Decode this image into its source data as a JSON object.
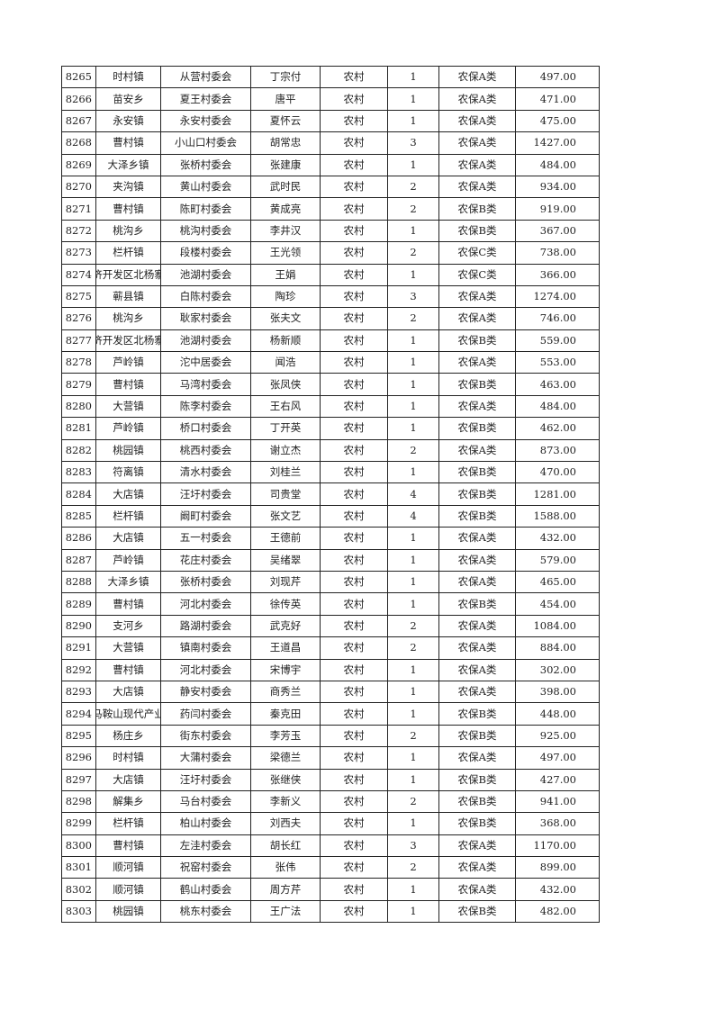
{
  "table": {
    "rows": [
      [
        "8265",
        "时村镇",
        "从营村委会",
        "丁宗付",
        "农村",
        "1",
        "农保A类",
        "497.00"
      ],
      [
        "8266",
        "苗安乡",
        "夏王村委会",
        "唐平",
        "农村",
        "1",
        "农保A类",
        "471.00"
      ],
      [
        "8267",
        "永安镇",
        "永安村委会",
        "夏怀云",
        "农村",
        "1",
        "农保A类",
        "475.00"
      ],
      [
        "8268",
        "曹村镇",
        "小山口村委会",
        "胡常忠",
        "农村",
        "3",
        "农保A类",
        "1427.00"
      ],
      [
        "8269",
        "大泽乡镇",
        "张桥村委会",
        "张建康",
        "农村",
        "1",
        "农保A类",
        "484.00"
      ],
      [
        "8270",
        "夹沟镇",
        "黄山村委会",
        "武时民",
        "农村",
        "2",
        "农保A类",
        "934.00"
      ],
      [
        "8271",
        "曹村镇",
        "陈町村委会",
        "黄成亮",
        "农村",
        "2",
        "农保B类",
        "919.00"
      ],
      [
        "8272",
        "桃沟乡",
        "桃沟村委会",
        "李井汉",
        "农村",
        "1",
        "农保B类",
        "367.00"
      ],
      [
        "8273",
        "栏杆镇",
        "段楼村委会",
        "王光领",
        "农村",
        "2",
        "农保C类",
        "738.00"
      ],
      [
        "8274",
        "济开发区北杨寨",
        "池湖村委会",
        "王娟",
        "农村",
        "1",
        "农保C类",
        "366.00"
      ],
      [
        "8275",
        "蕲县镇",
        "白陈村委会",
        "陶珍",
        "农村",
        "3",
        "农保A类",
        "1274.00"
      ],
      [
        "8276",
        "桃沟乡",
        "耿家村委会",
        "张夫文",
        "农村",
        "2",
        "农保A类",
        "746.00"
      ],
      [
        "8277",
        "济开发区北杨寨",
        "池湖村委会",
        "杨新顺",
        "农村",
        "1",
        "农保B类",
        "559.00"
      ],
      [
        "8278",
        "芦岭镇",
        "沱中居委会",
        "闻浩",
        "农村",
        "1",
        "农保A类",
        "553.00"
      ],
      [
        "8279",
        "曹村镇",
        "马湾村委会",
        "张凤侠",
        "农村",
        "1",
        "农保B类",
        "463.00"
      ],
      [
        "8280",
        "大营镇",
        "陈李村委会",
        "王右风",
        "农村",
        "1",
        "农保A类",
        "484.00"
      ],
      [
        "8281",
        "芦岭镇",
        "桥口村委会",
        "丁开英",
        "农村",
        "1",
        "农保B类",
        "462.00"
      ],
      [
        "8282",
        "桃园镇",
        "桃西村委会",
        "谢立杰",
        "农村",
        "2",
        "农保A类",
        "873.00"
      ],
      [
        "8283",
        "符离镇",
        "清水村委会",
        "刘桂兰",
        "农村",
        "1",
        "农保B类",
        "470.00"
      ],
      [
        "8284",
        "大店镇",
        "汪圩村委会",
        "司贵堂",
        "农村",
        "4",
        "农保B类",
        "1281.00"
      ],
      [
        "8285",
        "栏杆镇",
        "阚町村委会",
        "张文艺",
        "农村",
        "4",
        "农保B类",
        "1588.00"
      ],
      [
        "8286",
        "大店镇",
        "五一村委会",
        "王德前",
        "农村",
        "1",
        "农保A类",
        "432.00"
      ],
      [
        "8287",
        "芦岭镇",
        "花庄村委会",
        "吴绪翠",
        "农村",
        "1",
        "农保A类",
        "579.00"
      ],
      [
        "8288",
        "大泽乡镇",
        "张桥村委会",
        "刘现芹",
        "农村",
        "1",
        "农保A类",
        "465.00"
      ],
      [
        "8289",
        "曹村镇",
        "河北村委会",
        "徐传英",
        "农村",
        "1",
        "农保B类",
        "454.00"
      ],
      [
        "8290",
        "支河乡",
        "路湖村委会",
        "武克好",
        "农村",
        "2",
        "农保A类",
        "1084.00"
      ],
      [
        "8291",
        "大营镇",
        "镇南村委会",
        "王道昌",
        "农村",
        "2",
        "农保A类",
        "884.00"
      ],
      [
        "8292",
        "曹村镇",
        "河北村委会",
        "宋博宇",
        "农村",
        "1",
        "农保A类",
        "302.00"
      ],
      [
        "8293",
        "大店镇",
        "静安村委会",
        "商秀兰",
        "农村",
        "1",
        "农保A类",
        "398.00"
      ],
      [
        "8294",
        "马鞍山现代产业",
        "药闫村委会",
        "秦克田",
        "农村",
        "1",
        "农保B类",
        "448.00"
      ],
      [
        "8295",
        "杨庄乡",
        "街东村委会",
        "李芳玉",
        "农村",
        "2",
        "农保B类",
        "925.00"
      ],
      [
        "8296",
        "时村镇",
        "大蒲村委会",
        "梁德兰",
        "农村",
        "1",
        "农保A类",
        "497.00"
      ],
      [
        "8297",
        "大店镇",
        "汪圩村委会",
        "张继侠",
        "农村",
        "1",
        "农保B类",
        "427.00"
      ],
      [
        "8298",
        "解集乡",
        "马台村委会",
        "李新义",
        "农村",
        "2",
        "农保B类",
        "941.00"
      ],
      [
        "8299",
        "栏杆镇",
        "柏山村委会",
        "刘西夫",
        "农村",
        "1",
        "农保B类",
        "368.00"
      ],
      [
        "8300",
        "曹村镇",
        "左洼村委会",
        "胡长红",
        "农村",
        "3",
        "农保A类",
        "1170.00"
      ],
      [
        "8301",
        "顺河镇",
        "祝窑村委会",
        "张伟",
        "农村",
        "2",
        "农保A类",
        "899.00"
      ],
      [
        "8302",
        "顺河镇",
        "鹤山村委会",
        "周方芹",
        "农村",
        "1",
        "农保A类",
        "432.00"
      ],
      [
        "8303",
        "桃园镇",
        "桃东村委会",
        "王广法",
        "农村",
        "1",
        "农保B类",
        "482.00"
      ]
    ]
  }
}
